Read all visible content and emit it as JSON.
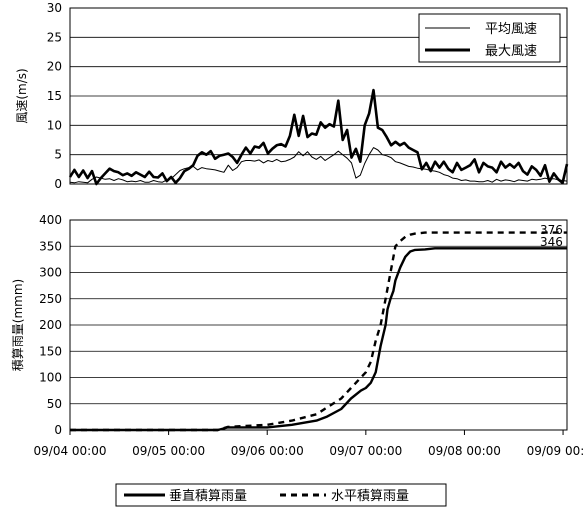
{
  "chart_data": [
    {
      "type": "line",
      "ylabel": "風速(m/s)",
      "ylim": [
        0,
        30
      ],
      "yticks": [
        "0",
        "5",
        "10",
        "15",
        "20",
        "25",
        "30"
      ],
      "grid": true,
      "legend_position": "top-right",
      "series": [
        {
          "name": "平均風速",
          "style": "thin",
          "color": "#000000",
          "values": [
            0.3,
            0.2,
            0.4,
            0.3,
            0.2,
            0.8,
            1.2,
            1.0,
            0.8,
            0.9,
            0.6,
            0.9,
            0.7,
            0.4,
            0.5,
            0.4,
            0.6,
            0.3,
            0.3,
            0.6,
            0.4,
            0.3,
            0.7,
            0.9,
            1.6,
            2.3,
            2.6,
            2.8,
            3.0,
            2.4,
            2.8,
            2.6,
            2.5,
            2.4,
            2.2,
            2.0,
            3.2,
            2.3,
            2.8,
            3.8,
            4.0,
            4.0,
            3.9,
            4.1,
            3.6,
            4.0,
            3.8,
            4.2,
            3.8,
            3.9,
            4.2,
            4.6,
            5.5,
            4.8,
            5.5,
            4.6,
            4.2,
            4.7,
            4.0,
            4.5,
            5.0,
            5.6,
            5.0,
            4.4,
            3.6,
            1.0,
            1.5,
            3.5,
            5.0,
            6.2,
            5.8,
            5.0,
            4.8,
            4.5,
            3.8,
            3.6,
            3.3,
            3.0,
            2.9,
            2.7,
            2.6,
            2.5,
            2.3,
            2.2,
            2.0,
            1.6,
            1.4,
            1.0,
            0.9,
            0.6,
            0.7,
            0.5,
            0.5,
            0.4,
            0.4,
            0.6,
            0.3,
            0.8,
            0.5,
            0.7,
            0.6,
            0.4,
            0.7,
            0.6,
            0.5,
            0.8,
            0.7,
            0.8,
            1.0,
            0.8,
            0.9,
            0.7,
            0.6,
            0.5
          ]
        },
        {
          "name": "最大風速",
          "style": "thick",
          "color": "#000000",
          "values": [
            1.2,
            2.4,
            1.2,
            2.3,
            1.0,
            2.2,
            0.0,
            1.0,
            1.8,
            2.6,
            2.2,
            2.0,
            1.5,
            1.8,
            1.4,
            2.0,
            1.6,
            1.2,
            2.1,
            1.2,
            1.1,
            1.8,
            0.5,
            1.2,
            0.2,
            1.0,
            2.2,
            2.6,
            3.2,
            4.8,
            5.4,
            5.0,
            5.6,
            4.3,
            4.8,
            5.0,
            5.2,
            4.6,
            3.6,
            5.0,
            6.2,
            5.2,
            6.4,
            6.2,
            7.0,
            5.2,
            6.0,
            6.6,
            6.8,
            6.4,
            8.2,
            11.8,
            8.2,
            11.6,
            8.0,
            8.6,
            8.4,
            10.5,
            9.6,
            10.2,
            9.8,
            14.2,
            7.5,
            9.2,
            4.5,
            6.0,
            3.8,
            10.0,
            12.0,
            16.0,
            9.6,
            9.2,
            8.0,
            6.6,
            7.2,
            6.6,
            7.0,
            6.2,
            5.8,
            5.4,
            2.5,
            3.6,
            2.2,
            3.8,
            2.8,
            3.8,
            2.6,
            2.0,
            3.6,
            2.4,
            2.8,
            3.2,
            4.2,
            2.0,
            3.6,
            3.0,
            2.8,
            2.0,
            3.8,
            2.8,
            3.4,
            2.8,
            3.6,
            2.2,
            1.6,
            3.0,
            2.4,
            1.4,
            3.2,
            0.4,
            1.8,
            0.8,
            0.2,
            3.4
          ]
        }
      ]
    },
    {
      "type": "line",
      "ylabel": "積算雨量(mmm)",
      "ylim": [
        0,
        400
      ],
      "yticks": [
        "0",
        "50",
        "100",
        "150",
        "200",
        "250",
        "300",
        "350",
        "400"
      ],
      "xlim": [
        "09/04 00:00",
        "09/09 00:00"
      ],
      "xticks": [
        "09/04 00:00",
        "09/05 00:00",
        "09/06 00:00",
        "09/07 00:00",
        "09/08 00:00",
        "09/09 00:00"
      ],
      "grid": true,
      "legend_position": "bottom",
      "annotations": [
        "376",
        "346"
      ],
      "series": [
        {
          "name": "垂直積算雨量",
          "style": "solid",
          "color": "#000000",
          "x": [
            0,
            1.5,
            1.6,
            2.0,
            2.25,
            2.5,
            2.6,
            2.75,
            2.85,
            2.95,
            3.0,
            3.05,
            3.1,
            3.15,
            3.2,
            3.22,
            3.25,
            3.28,
            3.3,
            3.35,
            3.4,
            3.45,
            3.5,
            3.6,
            3.7,
            3.8,
            4.0,
            4.5,
            5.0,
            5.04
          ],
          "y": [
            0,
            0,
            5,
            5,
            10,
            18,
            25,
            40,
            60,
            75,
            80,
            90,
            110,
            160,
            200,
            230,
            250,
            265,
            285,
            310,
            330,
            340,
            343,
            344,
            346,
            346,
            346,
            346,
            346,
            346
          ]
        },
        {
          "name": "水平積算雨量",
          "style": "dashed",
          "color": "#000000",
          "x": [
            0,
            1.5,
            1.6,
            2.0,
            2.25,
            2.5,
            2.6,
            2.75,
            2.85,
            2.95,
            3.0,
            3.05,
            3.1,
            3.15,
            3.2,
            3.25,
            3.3,
            3.35,
            3.4,
            3.45,
            3.5,
            3.6,
            3.7,
            3.8,
            4.0,
            4.5,
            5.0,
            5.04
          ],
          "y": [
            0,
            0,
            6,
            10,
            18,
            30,
            42,
            60,
            80,
            100,
            110,
            130,
            170,
            200,
            250,
            300,
            350,
            360,
            368,
            372,
            374,
            376,
            376,
            376,
            376,
            376,
            376,
            376
          ]
        }
      ]
    }
  ]
}
